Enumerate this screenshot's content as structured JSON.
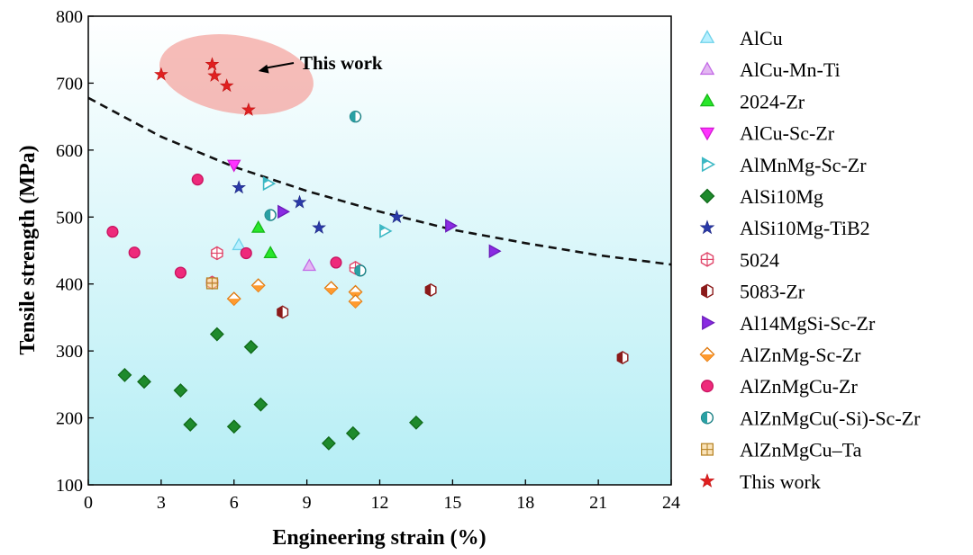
{
  "chart_data": {
    "type": "scatter",
    "xlabel": "Engineering strain (%)",
    "ylabel": "Tensile strength (MPa)",
    "xlim": [
      0,
      24
    ],
    "ylim": [
      100,
      800
    ],
    "xticks": [
      0,
      3,
      6,
      9,
      12,
      15,
      18,
      21,
      24
    ],
    "yticks": [
      100,
      200,
      300,
      400,
      500,
      600,
      700,
      800
    ],
    "grid": false,
    "legend_position": "right",
    "background": "vertical gradient white to light cyan",
    "annotations": [
      {
        "text": "This work",
        "target": [
          7.0,
          718
        ]
      }
    ],
    "highlight_region": {
      "type": "ellipse",
      "center": [
        6.1,
        713
      ],
      "radius": [
        3.2,
        58
      ],
      "color": "#f4a6a0"
    },
    "trend_line": {
      "style": "dashed",
      "x": [
        0,
        3,
        6,
        9,
        12,
        15,
        18,
        21,
        24
      ],
      "y": [
        678,
        620,
        575,
        539,
        508,
        481,
        461,
        443,
        429
      ]
    },
    "series": [
      {
        "name": "AlCu",
        "marker": "triangle-up",
        "fill": "#b8f0ff",
        "stroke": "#6fd2ea",
        "points": [
          [
            6.2,
            458
          ]
        ]
      },
      {
        "name": "AlCu-Mn-Ti",
        "marker": "triangle-up",
        "fill": "#e3b7f2",
        "stroke": "#c36ae6",
        "points": [
          [
            9.1,
            427
          ]
        ]
      },
      {
        "name": "2024-Zr",
        "marker": "triangle-up",
        "fill": "#28e62a",
        "stroke": "#16b818",
        "points": [
          [
            7.0,
            484
          ],
          [
            7.5,
            446
          ]
        ]
      },
      {
        "name": "AlCu-Sc-Zr",
        "marker": "triangle-down",
        "fill": "#ff33ff",
        "stroke": "#d21ad2",
        "points": [
          [
            6.0,
            578
          ]
        ]
      },
      {
        "name": "AlMnMg-Sc-Zr",
        "marker": "triangle-right-open",
        "fill": "#ffffff",
        "stroke": "#3cb8c4",
        "points": [
          [
            7.4,
            550
          ],
          [
            12.2,
            479
          ]
        ]
      },
      {
        "name": "AlSi10Mg",
        "marker": "diamond",
        "fill": "#1e8a2c",
        "stroke": "#106a1a",
        "points": [
          [
            1.5,
            264
          ],
          [
            2.3,
            254
          ],
          [
            3.8,
            241
          ],
          [
            4.2,
            190
          ],
          [
            5.3,
            325
          ],
          [
            6.0,
            187
          ],
          [
            6.7,
            306
          ],
          [
            7.1,
            220
          ],
          [
            9.9,
            162
          ],
          [
            10.9,
            177
          ],
          [
            13.5,
            193
          ]
        ]
      },
      {
        "name": "AlSi10Mg-TiB2",
        "marker": "star",
        "fill": "#2a3aa8",
        "stroke": "#1a2480",
        "points": [
          [
            6.2,
            544
          ],
          [
            8.7,
            522
          ],
          [
            9.5,
            484
          ],
          [
            12.7,
            500
          ]
        ]
      },
      {
        "name": "5024",
        "marker": "hexagon-cross",
        "fill": "#ffffff",
        "stroke": "#e0466a",
        "points": [
          [
            5.3,
            446
          ],
          [
            11.0,
            424
          ],
          [
            5.1,
            402
          ]
        ]
      },
      {
        "name": "5083-Zr",
        "marker": "hexagon-half",
        "fill": "#8b1a1a",
        "stroke": "#8b1a1a",
        "points": [
          [
            8.0,
            358
          ],
          [
            14.1,
            391
          ],
          [
            22.0,
            290
          ]
        ]
      },
      {
        "name": "Al14MgSi-Sc-Zr",
        "marker": "triangle-right",
        "fill": "#8a2be2",
        "stroke": "#6a1ab8",
        "points": [
          [
            8.0,
            508
          ],
          [
            14.9,
            487
          ],
          [
            16.7,
            449
          ]
        ]
      },
      {
        "name": "AlZnMg-Sc-Zr",
        "marker": "diamond-half",
        "fill": "#ff9a2e",
        "stroke": "#e07a10",
        "points": [
          [
            6.0,
            378
          ],
          [
            7.0,
            398
          ],
          [
            10.0,
            394
          ],
          [
            11.0,
            388
          ],
          [
            11.0,
            374
          ]
        ]
      },
      {
        "name": "AlZnMgCu-Zr",
        "marker": "circle",
        "fill": "#ee2a7b",
        "stroke": "#c81460",
        "points": [
          [
            1.0,
            478
          ],
          [
            1.9,
            447
          ],
          [
            3.8,
            417
          ],
          [
            4.5,
            556
          ],
          [
            6.5,
            446
          ],
          [
            10.2,
            432
          ]
        ]
      },
      {
        "name": "AlZnMgCu(-Si)-Sc-Zr",
        "marker": "circle-half",
        "fill": "#2aa0a4",
        "stroke": "#1a8084",
        "points": [
          [
            11.0,
            650
          ],
          [
            7.5,
            503
          ],
          [
            11.2,
            420
          ]
        ]
      },
      {
        "name": "AlZnMgCu–Ta",
        "marker": "square-cross",
        "fill": "#f7d08a",
        "stroke": "#b8862a",
        "points": [
          [
            5.1,
            401
          ]
        ]
      },
      {
        "name": "This work",
        "marker": "star",
        "fill": "#e02020",
        "stroke": "#c01010",
        "points": [
          [
            3.0,
            713
          ],
          [
            5.1,
            728
          ],
          [
            5.2,
            711
          ],
          [
            5.7,
            696
          ],
          [
            6.6,
            660
          ]
        ]
      }
    ]
  }
}
